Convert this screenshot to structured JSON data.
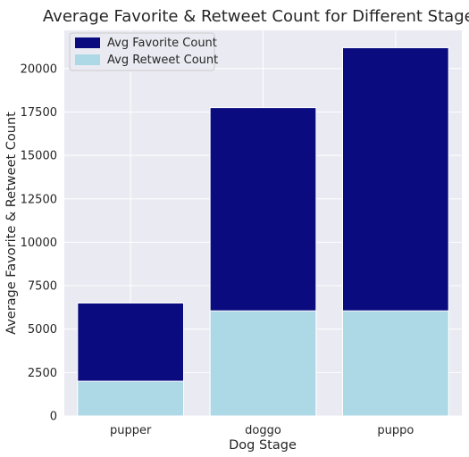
{
  "chart_data": {
    "type": "bar",
    "title": "Average Favorite & Retweet Count for Different Stages",
    "xlabel": "Dog Stage",
    "ylabel": "Average Favorite & Retweet Count",
    "categories": [
      "pupper",
      "doggo",
      "puppo"
    ],
    "series": [
      {
        "name": "Avg Favorite Count",
        "values": [
          6500,
          17750,
          21200
        ],
        "color": "#0b0b80"
      },
      {
        "name": "Avg Retweet Count",
        "values": [
          2000,
          6050,
          6050
        ],
        "color": "#add8e6"
      }
    ],
    "ylim": [
      0,
      22200
    ],
    "yticks": [
      0,
      2500,
      5000,
      7500,
      10000,
      12500,
      15000,
      17500,
      20000
    ],
    "ytick_labels": [
      "0",
      "2500",
      "5000",
      "7500",
      "10000",
      "12500",
      "15000",
      "17500",
      "20000"
    ],
    "grid": true,
    "legend_position": "top-left",
    "plot_background": "#eaeaf2",
    "grid_color": "#ffffff"
  }
}
